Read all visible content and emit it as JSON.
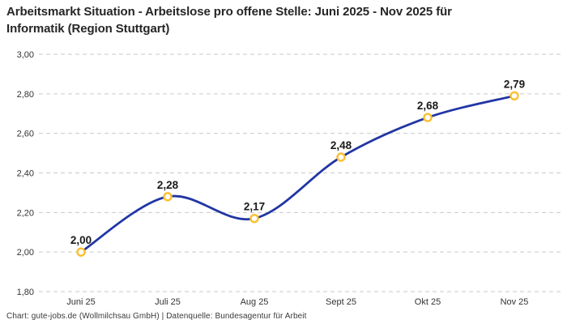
{
  "footer": "Chart: gute-jobs.de (Wollmilchsau GmbH) | Datenquelle: Bundesagentur für Arbeit",
  "chart_data": {
    "type": "line",
    "title": "Arbeitsmarkt Situation - Arbeitslose pro offene Stelle: Juni 2025 - Nov 2025 für Informatik (Region Stuttgart)",
    "categories": [
      "Juni 25",
      "Juli 25",
      "Aug 25",
      "Sept 25",
      "Okt 25",
      "Nov 25"
    ],
    "values": [
      2.0,
      2.28,
      2.17,
      2.48,
      2.68,
      2.79
    ],
    "value_labels": [
      "2,00",
      "2,28",
      "2,17",
      "2,48",
      "2,68",
      "2,79"
    ],
    "y_ticks": [
      "3,00",
      "2,80",
      "2,60",
      "2,40",
      "2,20",
      "2,00",
      "1,80"
    ],
    "y_tick_values": [
      3.0,
      2.8,
      2.6,
      2.4,
      2.2,
      2.0,
      1.8
    ],
    "ylim": [
      1.8,
      3.0
    ],
    "xlabel": "",
    "ylabel": "",
    "grid": "horizontal-dashed",
    "legend": "none",
    "line_style": "smooth-spline",
    "marker_style": "open-circle",
    "colors": {
      "line": "#2136a4",
      "marker_stroke": "#fcbf2d",
      "marker_fill": "#ffffff",
      "grid": "#c9c9c9",
      "title_text": "#262626",
      "axis_text": "#333333",
      "value_text": "#1a1a1a"
    }
  }
}
